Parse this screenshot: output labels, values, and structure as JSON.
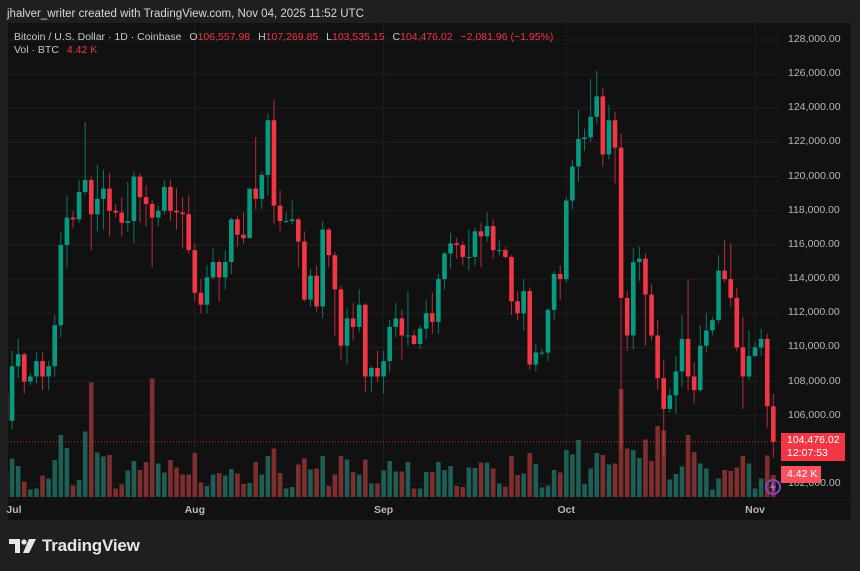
{
  "caption": "jhalver_writer created with TradingView.com, Nov 04, 2025 11:52 UTC",
  "legend": {
    "symbol": "Bitcoin / U.S. Dollar · 1D · Coinbase",
    "o_label": "O",
    "o_value": "106,557.98",
    "h_label": "H",
    "h_value": "107,269.85",
    "l_label": "L",
    "l_value": "103,535.15",
    "c_label": "C",
    "c_value": "104,476.02",
    "change": "−2,081.96 (−1.95%)",
    "vol_label": "Vol · BTC",
    "vol_value": "4.42 K"
  },
  "last_price": {
    "price": "104,476.02",
    "countdown": "12:07:53",
    "volume": "4.42 K"
  },
  "brand": "TradingView",
  "chart_data": {
    "type": "candlestick",
    "title": "Bitcoin / U.S. Dollar · 1D · Coinbase",
    "ylim": [
      101000,
      129000
    ],
    "grid": true,
    "colors": {
      "up": "#089981",
      "down": "#f23645",
      "vol_up": "#1e5e54",
      "vol_down": "#7d2f2f",
      "last_line": "#f23645"
    },
    "y_ticks": [
      "128,000.00",
      "126,000.00",
      "124,000.00",
      "122,000.00",
      "120,000.00",
      "118,000.00",
      "116,000.00",
      "114,000.00",
      "112,000.00",
      "110,000.00",
      "108,000.00",
      "106,000.00",
      "102,000.00"
    ],
    "y_tick_values": [
      128000,
      126000,
      124000,
      122000,
      120000,
      118000,
      116000,
      114000,
      112000,
      110000,
      108000,
      106000,
      102000
    ],
    "x_ticks": [
      {
        "label": "Jul",
        "index": 0
      },
      {
        "label": "Aug",
        "index": 31
      },
      {
        "label": "Sep",
        "index": 62
      },
      {
        "label": "Oct",
        "index": 92
      },
      {
        "label": "Nov",
        "index": 123
      }
    ],
    "last_close": 104476.02,
    "ohlc": [
      [
        107300,
        107500,
        105300,
        105700
      ],
      [
        105700,
        109800,
        105200,
        108900
      ],
      [
        108900,
        110500,
        108200,
        109600
      ],
      [
        109600,
        109700,
        107300,
        108000
      ],
      [
        108000,
        108500,
        107800,
        108300
      ],
      [
        108300,
        109700,
        107900,
        109200
      ],
      [
        109200,
        109700,
        107500,
        108300
      ],
      [
        108300,
        109200,
        107500,
        108900
      ],
      [
        108900,
        111900,
        108300,
        111300
      ],
      [
        111300,
        116800,
        110600,
        116000
      ],
      [
        116000,
        118900,
        114700,
        117600
      ],
      [
        117600,
        118000,
        117000,
        117500
      ],
      [
        117500,
        119800,
        117300,
        119100
      ],
      [
        119100,
        123200,
        118900,
        119800
      ],
      [
        119800,
        120000,
        115700,
        117800
      ],
      [
        117800,
        120700,
        116800,
        118700
      ],
      [
        118700,
        120400,
        116900,
        119300
      ],
      [
        119300,
        120200,
        116500,
        118000
      ],
      [
        118000,
        118400,
        117600,
        117900
      ],
      [
        117900,
        118800,
        116500,
        117300
      ],
      [
        117300,
        119700,
        116800,
        117400
      ],
      [
        117400,
        120300,
        116100,
        120000
      ],
      [
        120000,
        120200,
        117300,
        118800
      ],
      [
        118800,
        119500,
        117100,
        118400
      ],
      [
        118400,
        118600,
        114700,
        117600
      ],
      [
        117600,
        118300,
        117100,
        118000
      ],
      [
        118000,
        119800,
        117800,
        119400
      ],
      [
        119400,
        119800,
        117400,
        118000
      ],
      [
        118000,
        119300,
        116900,
        117900
      ],
      [
        117900,
        118800,
        115800,
        117800
      ],
      [
        117800,
        118900,
        115500,
        115700
      ],
      [
        115700,
        116100,
        112700,
        113200
      ],
      [
        113200,
        114000,
        112000,
        112500
      ],
      [
        112500,
        114800,
        112000,
        114100
      ],
      [
        114100,
        115800,
        114000,
        115000
      ],
      [
        115000,
        115100,
        112700,
        114100
      ],
      [
        114100,
        115700,
        113400,
        115000
      ],
      [
        115000,
        117600,
        114300,
        117500
      ],
      [
        117500,
        117700,
        115900,
        116600
      ],
      [
        116600,
        117900,
        116100,
        116400
      ],
      [
        116400,
        119300,
        116400,
        119300
      ],
      [
        119300,
        122300,
        118100,
        118700
      ],
      [
        118700,
        120300,
        118100,
        120100
      ],
      [
        120100,
        123700,
        118900,
        123300
      ],
      [
        123300,
        124500,
        117200,
        118300
      ],
      [
        118300,
        119200,
        116800,
        117400
      ],
      [
        117400,
        117900,
        117300,
        117400
      ],
      [
        117400,
        118600,
        117200,
        117500
      ],
      [
        117500,
        117600,
        114700,
        116200
      ],
      [
        116200,
        116800,
        112700,
        112800
      ],
      [
        112800,
        114600,
        112400,
        114200
      ],
      [
        114200,
        114800,
        112100,
        112400
      ],
      [
        112400,
        117400,
        111700,
        116900
      ],
      [
        116900,
        117000,
        114700,
        115400
      ],
      [
        115400,
        115600,
        110700,
        113400
      ],
      [
        113400,
        113600,
        109300,
        110100
      ],
      [
        110100,
        112300,
        109000,
        111700
      ],
      [
        111700,
        112600,
        110400,
        111200
      ],
      [
        111200,
        113400,
        110900,
        112500
      ],
      [
        112500,
        112600,
        107400,
        108300
      ],
      [
        108300,
        108900,
        107400,
        108800
      ],
      [
        108800,
        109800,
        108000,
        108300
      ],
      [
        108300,
        109800,
        107300,
        109200
      ],
      [
        109200,
        111600,
        108600,
        111200
      ],
      [
        111200,
        112600,
        110600,
        111700
      ],
      [
        111700,
        112200,
        109300,
        110700
      ],
      [
        110700,
        113300,
        110100,
        110700
      ],
      [
        110700,
        111000,
        110100,
        110200
      ],
      [
        110200,
        111300,
        109900,
        111100
      ],
      [
        111100,
        112800,
        110500,
        112000
      ],
      [
        112000,
        113200,
        110800,
        111500
      ],
      [
        111500,
        114300,
        110800,
        114000
      ],
      [
        114000,
        115600,
        113400,
        115500
      ],
      [
        115500,
        116700,
        114600,
        116100
      ],
      [
        116100,
        116400,
        115200,
        116000
      ],
      [
        116000,
        116200,
        114800,
        115300
      ],
      [
        115300,
        116900,
        114500,
        115300
      ],
      [
        115300,
        117000,
        114800,
        116800
      ],
      [
        116800,
        117300,
        114700,
        116500
      ],
      [
        116500,
        117900,
        116200,
        117100
      ],
      [
        117100,
        117500,
        115200,
        115700
      ],
      [
        115700,
        116300,
        115400,
        115700
      ],
      [
        115700,
        115900,
        115200,
        115300
      ],
      [
        115300,
        115400,
        111900,
        112700
      ],
      [
        112700,
        113300,
        111600,
        112000
      ],
      [
        112000,
        114000,
        111000,
        113300
      ],
      [
        113300,
        113500,
        108700,
        109000
      ],
      [
        109000,
        110200,
        108600,
        109700
      ],
      [
        109700,
        109900,
        109500,
        109700
      ],
      [
        109700,
        112300,
        109200,
        112200
      ],
      [
        112200,
        114500,
        111600,
        114300
      ],
      [
        114300,
        114800,
        112800,
        114000
      ],
      [
        114000,
        118800,
        113800,
        118600
      ],
      [
        118600,
        121000,
        118100,
        120600
      ],
      [
        120600,
        123900,
        119700,
        122200
      ],
      [
        122200,
        122800,
        121500,
        122300
      ],
      [
        122300,
        125700,
        122000,
        123500
      ],
      [
        123500,
        126200,
        123100,
        124700
      ],
      [
        124700,
        125200,
        120600,
        121300
      ],
      [
        121300,
        124200,
        121000,
        123300
      ],
      [
        123300,
        123800,
        119600,
        121700
      ],
      [
        121700,
        122500,
        104000,
        112900
      ],
      [
        112900,
        113300,
        109800,
        110700
      ],
      [
        110700,
        115800,
        109900,
        115000
      ],
      [
        115000,
        115900,
        113900,
        115200
      ],
      [
        115200,
        115500,
        110100,
        113100
      ],
      [
        113100,
        113700,
        110400,
        110700
      ],
      [
        110700,
        111600,
        107500,
        108200
      ],
      [
        108200,
        109300,
        103600,
        106400
      ],
      [
        106400,
        107600,
        106200,
        107200
      ],
      [
        107200,
        109500,
        106100,
        108600
      ],
      [
        108600,
        111900,
        107700,
        110500
      ],
      [
        110500,
        114000,
        107500,
        108300
      ],
      [
        108300,
        109100,
        106700,
        107500
      ],
      [
        107500,
        111300,
        107400,
        110100
      ],
      [
        110100,
        112000,
        109700,
        111000
      ],
      [
        111000,
        111800,
        110700,
        111600
      ],
      [
        111600,
        115400,
        111400,
        114500
      ],
      [
        114500,
        116300,
        113800,
        114000
      ],
      [
        114000,
        116100,
        112400,
        112900
      ],
      [
        112900,
        113500,
        109800,
        110000
      ],
      [
        110000,
        111800,
        106400,
        108300
      ],
      [
        108300,
        111000,
        108100,
        109500
      ],
      [
        109500,
        110300,
        109400,
        110000
      ],
      [
        110000,
        111100,
        109500,
        110500
      ],
      [
        110500,
        110800,
        105300,
        106557.98
      ],
      [
        106557.98,
        107269.85,
        103535.15,
        104476.02
      ]
    ],
    "volume_k": [
      5.1,
      7.7,
      6.2,
      3.1,
      1.5,
      1.7,
      4.3,
      3.7,
      7.4,
      12.4,
      9.8,
      2.3,
      3.4,
      13.1,
      22.9,
      8.9,
      8.1,
      8.4,
      1.7,
      2.5,
      5.3,
      7.2,
      5.4,
      7.0,
      23.7,
      6.7,
      4.9,
      7.4,
      5.9,
      4.5,
      4.5,
      8.8,
      2.9,
      2.2,
      4.5,
      4.8,
      4.3,
      5.6,
      4.7,
      2.6,
      2.8,
      7.0,
      4.5,
      8.2,
      9.7,
      4.8,
      1.7,
      2.0,
      6.5,
      7.7,
      5.5,
      5.7,
      8.2,
      2.2,
      4.5,
      8.2,
      7.5,
      5.0,
      4.5,
      7.5,
      2.7,
      2.7,
      5.3,
      7.2,
      5.1,
      5.1,
      7.0,
      1.7,
      1.7,
      5.0,
      5.0,
      7.0,
      5.4,
      6.2,
      2.2,
      2.0,
      5.9,
      5.8,
      6.9,
      6.9,
      5.7,
      2.7,
      2.1,
      8.2,
      4.4,
      4.7,
      8.8,
      6.6,
      1.9,
      2.3,
      5.4,
      4.9,
      9.4,
      8.5,
      11.4,
      2.6,
      5.7,
      8.8,
      8.4,
      6.5,
      6.7,
      21.6,
      9.7,
      9.4,
      7.8,
      11.5,
      7.2,
      14.2,
      13.3,
      3.5,
      4.6,
      6.1,
      12.4,
      9.0,
      6.7,
      5.7,
      1.5,
      3.7,
      5.4,
      5.2,
      5.9,
      8.2,
      6.7,
      1.7,
      3.7,
      8.3,
      4.42
    ]
  }
}
